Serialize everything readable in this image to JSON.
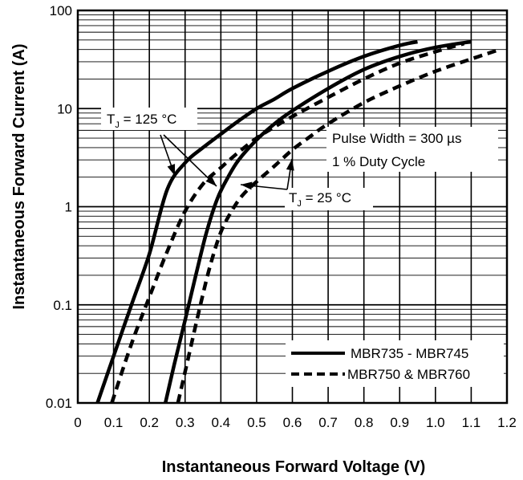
{
  "chart_data": {
    "type": "line",
    "xlabel": "Instantaneous Forward Voltage (V)",
    "ylabel": "Instantaneous Forward Current (A)",
    "xlim": [
      0,
      1.2
    ],
    "ylim": [
      0.01,
      100
    ],
    "y_scale": "log",
    "x_ticks": [
      0,
      0.1,
      0.2,
      0.3,
      0.4,
      0.5,
      0.6,
      0.7,
      0.8,
      0.9,
      1.0,
      1.1,
      1.2
    ],
    "x_tick_labels": [
      "0",
      "0.1",
      "0.2",
      "0.3",
      "0.4",
      "0.5",
      "0.6",
      "0.7",
      "0.8",
      "0.9",
      "1.0",
      "1.1",
      "1.2"
    ],
    "y_ticks": [
      0.01,
      0.1,
      1,
      10,
      100
    ],
    "y_tick_labels": [
      "0.01",
      "0.1",
      "1",
      "10",
      "100"
    ],
    "grid": true,
    "legend_position": "bottom-right",
    "legend": [
      {
        "label": "MBR735 - MBR745",
        "style": "solid"
      },
      {
        "label": "MBR750 & MBR760",
        "style": "dashed"
      }
    ],
    "annotations": {
      "tj_high": {
        "main": "T",
        "sub": "J",
        "rest": " = 125 °C"
      },
      "tj_low": {
        "main": "T",
        "sub": "J",
        "rest": " = 25 °C"
      },
      "pulse_line1": "Pulse Width = 300 µs",
      "pulse_line2": "1 % Duty Cycle"
    },
    "series": [
      {
        "group": "MBR735 - MBR745",
        "condition": "125 °C",
        "style": "solid",
        "x": [
          0.055,
          0.1,
          0.15,
          0.2,
          0.25,
          0.3,
          0.35,
          0.4,
          0.45,
          0.5,
          0.55,
          0.6,
          0.7,
          0.8,
          0.9,
          0.95
        ],
        "y": [
          0.01,
          0.03,
          0.1,
          0.33,
          1.5,
          2.8,
          4.0,
          5.5,
          7.5,
          10,
          12.5,
          16,
          24,
          34,
          44,
          48
        ]
      },
      {
        "group": "MBR735 - MBR745",
        "condition": "25 °C",
        "style": "solid",
        "x": [
          0.245,
          0.27,
          0.3,
          0.33,
          0.36,
          0.39,
          0.42,
          0.45,
          0.5,
          0.55,
          0.6,
          0.7,
          0.8,
          0.9,
          1.0,
          1.1
        ],
        "y": [
          0.01,
          0.025,
          0.07,
          0.2,
          0.55,
          1.2,
          2.0,
          3.0,
          4.8,
          7,
          9.5,
          16,
          25,
          34,
          42,
          48
        ]
      },
      {
        "group": "MBR750 & MBR760",
        "condition": "125 °C",
        "style": "dashed",
        "x": [
          0.095,
          0.15,
          0.2,
          0.25,
          0.3,
          0.35,
          0.4,
          0.45,
          0.5,
          0.55,
          0.6,
          0.7,
          0.8,
          0.9,
          1.0,
          1.08
        ],
        "y": [
          0.01,
          0.04,
          0.12,
          0.35,
          0.9,
          1.7,
          2.5,
          3.6,
          5.0,
          6.5,
          8.3,
          13,
          20,
          29,
          38,
          46
        ]
      },
      {
        "group": "MBR750 & MBR760",
        "condition": "25 °C",
        "style": "dashed",
        "x": [
          0.28,
          0.31,
          0.34,
          0.37,
          0.4,
          0.43,
          0.46,
          0.5,
          0.55,
          0.6,
          0.65,
          0.7,
          0.8,
          0.9,
          1.0,
          1.1,
          1.18
        ],
        "y": [
          0.01,
          0.03,
          0.09,
          0.25,
          0.55,
          0.9,
          1.3,
          1.8,
          2.6,
          3.8,
          5.2,
          7,
          11.5,
          17,
          24,
          32,
          40
        ]
      }
    ]
  }
}
